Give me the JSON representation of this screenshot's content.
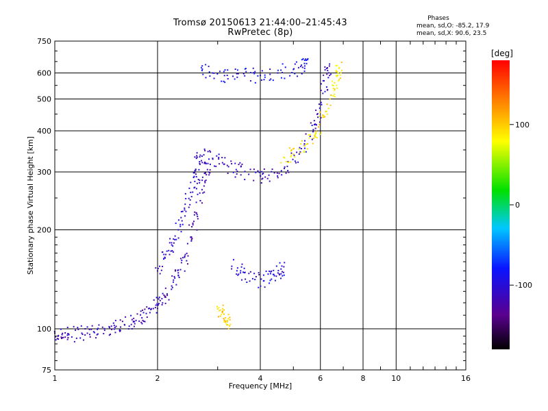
{
  "header": {
    "title": "Tromsø 20150613 21:44:00–21:45:43",
    "subtitle": "RwPretec (8p)"
  },
  "phase_info": {
    "heading": "Phases",
    "o_mode": "mean, sd,O: -85.2, 17.9",
    "x_mode": "mean, sd,X:  90.6, 23.5"
  },
  "colorbar": {
    "label": "[deg]",
    "ticks": [
      100,
      0,
      -100
    ],
    "range": [
      -180,
      180
    ]
  },
  "chart_data": {
    "type": "scatter",
    "xlabel": "Frequency [MHz]",
    "ylabel": "Stationary phase Virtual Height [km]",
    "xscale": "log",
    "yscale": "log",
    "xlim": [
      1,
      16
    ],
    "ylim": [
      75,
      750
    ],
    "xticks": [
      1,
      2,
      4,
      6,
      8,
      10,
      16
    ],
    "yticks": [
      75,
      100,
      200,
      300,
      400,
      500,
      600,
      750
    ],
    "grid": true,
    "color_by": "phase (deg)",
    "traces": [
      {
        "name": "",
        "phase_deg": -115,
        "points": [
          [
            1.0,
            97
          ],
          [
            1.05,
            96
          ],
          [
            1.1,
            96
          ],
          [
            1.2,
            97
          ],
          [
            1.3,
            98
          ],
          [
            1.4,
            99
          ],
          [
            1.5,
            101
          ],
          [
            1.6,
            103
          ],
          [
            1.7,
            105
          ],
          [
            1.8,
            108
          ],
          [
            1.9,
            112
          ],
          [
            2.0,
            118
          ],
          [
            2.1,
            125
          ],
          [
            2.2,
            135
          ],
          [
            2.3,
            148
          ],
          [
            2.4,
            165
          ],
          [
            2.5,
            190
          ],
          [
            2.6,
            225
          ],
          [
            2.7,
            265
          ],
          [
            2.8,
            305
          ]
        ]
      },
      {
        "name": "",
        "phase_deg": -105,
        "points": [
          [
            2.0,
            150
          ],
          [
            2.1,
            165
          ],
          [
            2.2,
            180
          ],
          [
            2.3,
            200
          ],
          [
            2.4,
            230
          ],
          [
            2.5,
            260
          ],
          [
            2.6,
            290
          ]
        ]
      },
      {
        "name": "",
        "phase_deg": -110,
        "points": [
          [
            2.6,
            330
          ],
          [
            2.7,
            335
          ],
          [
            2.9,
            330
          ],
          [
            3.1,
            320
          ],
          [
            3.4,
            305
          ],
          [
            3.7,
            295
          ],
          [
            4.0,
            292
          ],
          [
            4.4,
            298
          ],
          [
            4.8,
            312
          ],
          [
            5.2,
            340
          ],
          [
            5.6,
            385
          ],
          [
            5.9,
            440
          ],
          [
            6.1,
            520
          ],
          [
            6.3,
            610
          ]
        ]
      },
      {
        "name": "",
        "phase_deg": -90,
        "points": [
          [
            2.7,
            610
          ],
          [
            2.9,
            600
          ],
          [
            3.2,
            590
          ],
          [
            3.6,
            588
          ],
          [
            4.0,
            590
          ],
          [
            4.5,
            600
          ],
          [
            5.0,
            615
          ],
          [
            5.4,
            630
          ]
        ]
      },
      {
        "name": "",
        "phase_deg": -100,
        "points": [
          [
            3.3,
            155
          ],
          [
            3.5,
            148
          ],
          [
            3.8,
            142
          ],
          [
            4.1,
            140
          ],
          [
            4.4,
            145
          ],
          [
            4.6,
            152
          ]
        ]
      },
      {
        "name": "",
        "phase_deg": 90,
        "points": [
          [
            4.6,
            320
          ],
          [
            5.0,
            340
          ],
          [
            5.4,
            360
          ],
          [
            5.8,
            395
          ],
          [
            6.1,
            440
          ],
          [
            6.4,
            500
          ],
          [
            6.6,
            560
          ],
          [
            6.8,
            620
          ]
        ]
      },
      {
        "name": "",
        "phase_deg": 95,
        "points": [
          [
            3.0,
            115
          ],
          [
            3.1,
            112
          ],
          [
            3.2,
            105
          ]
        ]
      }
    ]
  }
}
